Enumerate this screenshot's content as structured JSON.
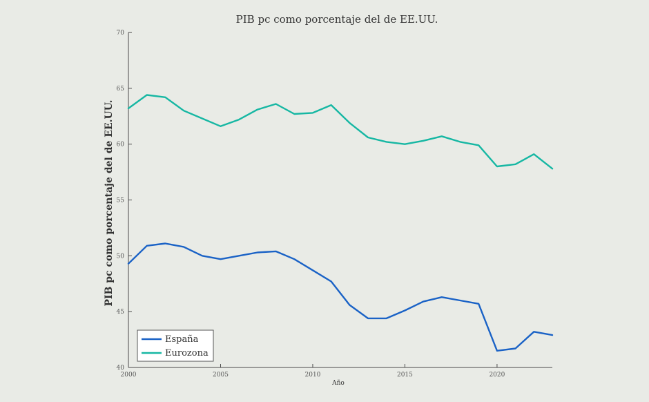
{
  "chart_data": {
    "type": "line",
    "title": "PIB pc como porcentaje del de EE.UU.",
    "xlabel": "Año",
    "ylabel": "PIB pc como porcentaje del de EE.UU.",
    "xlim": [
      2000,
      2023
    ],
    "ylim": [
      40,
      70
    ],
    "xticks": [
      2000,
      2005,
      2010,
      2015,
      2020
    ],
    "yticks": [
      40,
      45,
      50,
      55,
      60,
      65,
      70
    ],
    "grid": false,
    "legend_position": "bottom-left",
    "x": [
      2000,
      2001,
      2002,
      2003,
      2004,
      2005,
      2006,
      2007,
      2008,
      2009,
      2010,
      2011,
      2012,
      2013,
      2014,
      2015,
      2016,
      2017,
      2018,
      2019,
      2020,
      2021,
      2022,
      2023
    ],
    "series": [
      {
        "name": "España",
        "color": "#1a62c6",
        "values": [
          49.3,
          50.9,
          51.1,
          50.8,
          50.0,
          49.7,
          50.0,
          50.3,
          50.4,
          49.7,
          48.7,
          47.7,
          45.6,
          44.4,
          44.4,
          45.1,
          45.9,
          46.3,
          46.0,
          45.7,
          41.5,
          41.7,
          43.2,
          42.9
        ]
      },
      {
        "name": "Eurozona",
        "color": "#16b7a3",
        "values": [
          63.2,
          64.4,
          64.2,
          63.0,
          62.3,
          61.6,
          62.2,
          63.1,
          63.6,
          62.7,
          62.8,
          63.5,
          61.9,
          60.6,
          60.2,
          60.0,
          60.3,
          60.7,
          60.2,
          59.9,
          58.0,
          58.2,
          59.1,
          57.8
        ]
      }
    ]
  }
}
